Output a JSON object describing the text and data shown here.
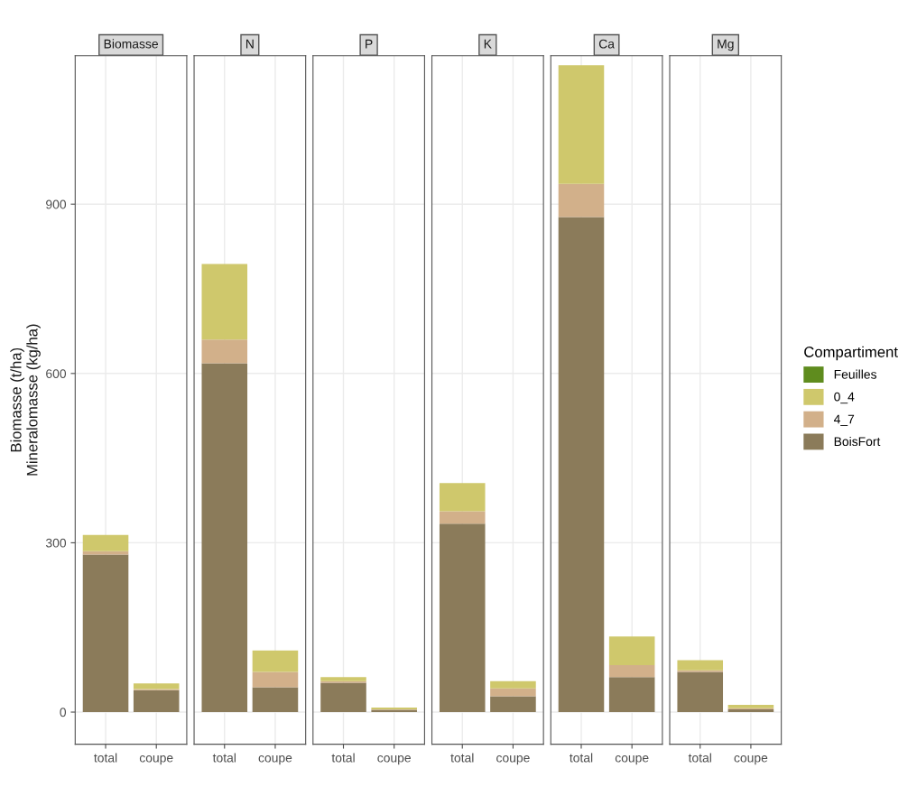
{
  "chart_data": [
    {
      "type": "bar",
      "title": "Biomasse",
      "ylabel": "Biomasse (t/ha)\nMineralomasse (kg/ha)",
      "categories": [
        "total",
        "coupe"
      ],
      "stacked": true,
      "ylim": [
        -57,
        1163
      ],
      "yticks": [
        0,
        300,
        600,
        900
      ],
      "grid": true,
      "legend": "right",
      "legend_title": "Compartiment",
      "series": [
        {
          "name": "BoisFort",
          "color": "#8b7b5a",
          "values": [
            279,
            39
          ]
        },
        {
          "name": "4_7",
          "color": "#d2b08a",
          "values": [
            6,
            2
          ]
        },
        {
          "name": "0_4",
          "color": "#cfc86c",
          "values": [
            29,
            10
          ]
        },
        {
          "name": "Feuilles",
          "color": "#5f8c1e",
          "values": [
            0,
            0
          ]
        }
      ]
    },
    {
      "type": "bar",
      "title": "N",
      "categories": [
        "total",
        "coupe"
      ],
      "stacked": true,
      "ylim": [
        -57,
        1163
      ],
      "yticks": [
        0,
        300,
        600,
        900
      ],
      "grid": true,
      "tick_labels": "x",
      "series": [
        {
          "color": "#8b7b5a",
          "values": [
            618,
            44
          ]
        },
        {
          "color": "#d2b08a",
          "values": [
            42,
            27
          ]
        },
        {
          "color": "#cfc86c",
          "values": [
            134,
            38
          ]
        },
        {
          "color": "#5f8c1e",
          "values": [
            0,
            0
          ]
        }
      ]
    },
    {
      "type": "bar",
      "title": "P",
      "categories": [
        "total",
        "coupe"
      ],
      "stacked": true,
      "ylim": [
        -57,
        1163
      ],
      "yticks": [
        0,
        300,
        600,
        900
      ],
      "grid": true,
      "tick_labels": "x",
      "series": [
        {
          "color": "#8b7b5a",
          "values": [
            52,
            4
          ]
        },
        {
          "color": "#d2b08a",
          "values": [
            3,
            1
          ]
        },
        {
          "color": "#cfc86c",
          "values": [
            7,
            3
          ]
        },
        {
          "color": "#5f8c1e",
          "values": [
            0,
            0
          ]
        }
      ]
    },
    {
      "type": "bar",
      "title": "K",
      "categories": [
        "total",
        "coupe"
      ],
      "stacked": true,
      "ylim": [
        -57,
        1163
      ],
      "yticks": [
        0,
        300,
        600,
        900
      ],
      "grid": true,
      "tick_labels": "x",
      "series": [
        {
          "color": "#8b7b5a",
          "values": [
            334,
            28
          ]
        },
        {
          "color": "#d2b08a",
          "values": [
            22,
            14
          ]
        },
        {
          "color": "#cfc86c",
          "values": [
            50,
            13
          ]
        },
        {
          "color": "#5f8c1e",
          "values": [
            0,
            0
          ]
        }
      ]
    },
    {
      "type": "bar",
      "title": "Ca",
      "categories": [
        "total",
        "coupe"
      ],
      "stacked": true,
      "ylim": [
        -57,
        1163
      ],
      "yticks": [
        0,
        300,
        600,
        900
      ],
      "grid": true,
      "tick_labels": "x",
      "series": [
        {
          "color": "#8b7b5a",
          "values": [
            877,
            62
          ]
        },
        {
          "color": "#d2b08a",
          "values": [
            59,
            21
          ]
        },
        {
          "color": "#cfc86c",
          "values": [
            210,
            51
          ]
        },
        {
          "color": "#5f8c1e",
          "values": [
            0,
            0
          ]
        }
      ]
    },
    {
      "type": "bar",
      "title": "Mg",
      "categories": [
        "total",
        "coupe"
      ],
      "stacked": true,
      "ylim": [
        -57,
        1163
      ],
      "yticks": [
        0,
        300,
        600,
        900
      ],
      "grid": true,
      "tick_labels": "x",
      "series": [
        {
          "color": "#8b7b5a",
          "values": [
            71,
            5
          ]
        },
        {
          "color": "#d2b08a",
          "values": [
            3,
            2
          ]
        },
        {
          "color": "#cfc86c",
          "values": [
            18,
            6
          ]
        },
        {
          "color": "#5f8c1e",
          "values": [
            0,
            0
          ]
        }
      ]
    }
  ]
}
